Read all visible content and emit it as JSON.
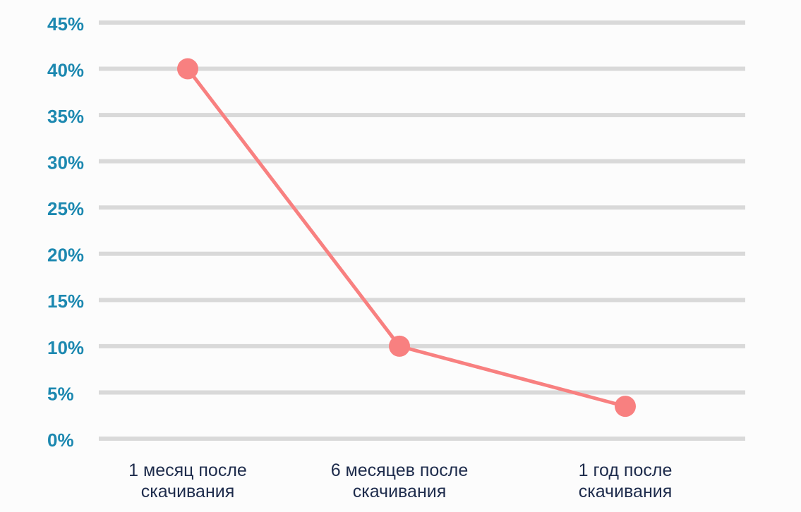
{
  "chart_data": {
    "type": "line",
    "categories": [
      "1 месяц после скачивания",
      "6 месяцев после скачивания",
      "1 год после скачивания"
    ],
    "values": [
      40,
      10,
      3.5
    ],
    "color": "#f88080",
    "ylim": [
      0,
      45
    ],
    "yticks": [
      {
        "value": 0,
        "label": "0%"
      },
      {
        "value": 5,
        "label": "5%"
      },
      {
        "value": 10,
        "label": "10%"
      },
      {
        "value": 15,
        "label": "15%"
      },
      {
        "value": 20,
        "label": "20%"
      },
      {
        "value": 25,
        "label": "25%"
      },
      {
        "value": 30,
        "label": "30%"
      },
      {
        "value": 35,
        "label": "35%"
      },
      {
        "value": 40,
        "label": "40%"
      },
      {
        "value": 45,
        "label": "45%"
      }
    ],
    "grid": true
  }
}
